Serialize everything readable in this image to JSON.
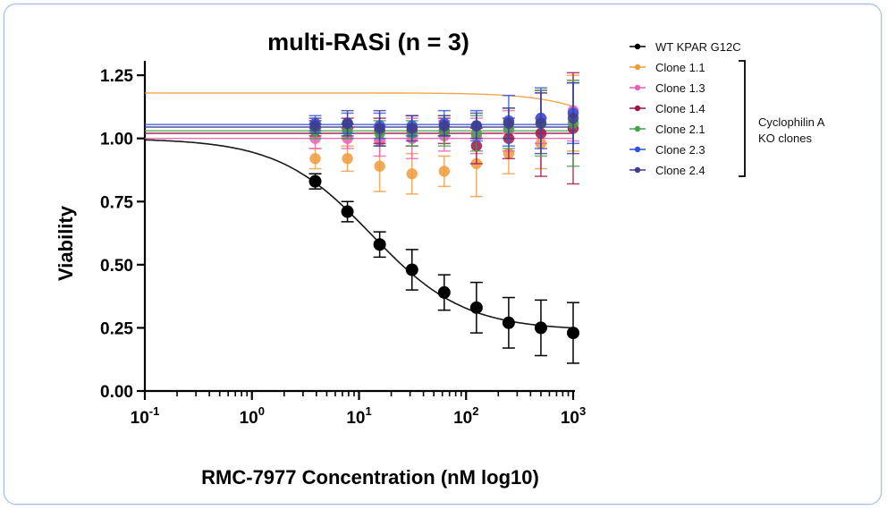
{
  "chart_data": {
    "type": "scatter",
    "title": "multi-RASi (n = 3)",
    "xlabel": "RMC-7977 Concentration (nM log10)",
    "ylabel": "Viability",
    "x_scale": "log",
    "xlim": [
      0.1,
      1000
    ],
    "ylim": [
      0,
      1.3
    ],
    "x_ticks": [
      {
        "base": "10",
        "exp": "-1"
      },
      {
        "base": "10",
        "exp": "0"
      },
      {
        "base": "10",
        "exp": "1"
      },
      {
        "base": "10",
        "exp": "2"
      },
      {
        "base": "10",
        "exp": "3"
      }
    ],
    "y_ticks": [
      "0.00",
      "0.25",
      "0.50",
      "0.75",
      "1.00",
      "1.25"
    ],
    "y_tick_values": [
      0,
      0.25,
      0.5,
      0.75,
      1.0,
      1.25
    ],
    "legend_position": "right",
    "bracket_label": [
      "Cyclophilin A",
      "KO clones"
    ],
    "x": [
      3.9,
      7.8,
      15.6,
      31.25,
      62.5,
      125,
      250,
      500,
      1000
    ],
    "series": [
      {
        "name": "WT KPAR G12C",
        "color": "#000000",
        "values": [
          0.83,
          0.71,
          0.58,
          0.48,
          0.39,
          0.33,
          0.27,
          0.25,
          0.23
        ],
        "err": [
          0.03,
          0.04,
          0.05,
          0.08,
          0.07,
          0.1,
          0.1,
          0.11,
          0.12
        ],
        "fit": {
          "top": 1.0,
          "bottom": 0.24,
          "ec50": 13,
          "hill": 1.0
        }
      },
      {
        "name": "Clone 1.1",
        "color": "#ef9b3c",
        "values": [
          0.92,
          0.92,
          0.89,
          0.86,
          0.87,
          0.9,
          0.94,
          0.98,
          1.1
        ],
        "err": [
          0.04,
          0.05,
          0.1,
          0.08,
          0.06,
          0.13,
          0.08,
          0.1,
          0.15
        ],
        "fit": {
          "top": 1.18,
          "bottom": 0.905,
          "ec50": 3000,
          "hill": 1.3
        }
      },
      {
        "name": "Clone 1.3",
        "color": "#e85fb4",
        "values": [
          1.0,
          1.0,
          0.99,
          1.0,
          1.01,
          1.01,
          1.03,
          1.08,
          1.11
        ],
        "err": [
          0.04,
          0.04,
          0.06,
          0.08,
          0.06,
          0.07,
          0.08,
          0.1,
          0.12
        ],
        "fit": {
          "flat": 1.0
        }
      },
      {
        "name": "Clone 1.4",
        "color": "#a0124a",
        "values": [
          1.04,
          1.04,
          1.03,
          1.03,
          1.03,
          0.97,
          1.0,
          1.02,
          1.04
        ],
        "err": [
          0.03,
          0.04,
          0.05,
          0.06,
          0.05,
          0.07,
          0.08,
          0.17,
          0.22
        ],
        "fit": {
          "flat": 1.02
        }
      },
      {
        "name": "Clone 2.1",
        "color": "#43a34a",
        "values": [
          1.03,
          1.03,
          1.02,
          1.02,
          1.03,
          1.02,
          1.04,
          1.06,
          1.06
        ],
        "err": [
          0.03,
          0.03,
          0.05,
          0.05,
          0.06,
          0.07,
          0.08,
          0.13,
          0.17
        ],
        "fit": {
          "flat": 1.03
        }
      },
      {
        "name": "Clone 2.3",
        "color": "#2f52e0",
        "values": [
          1.06,
          1.06,
          1.05,
          1.05,
          1.06,
          1.05,
          1.07,
          1.08,
          1.1
        ],
        "err": [
          0.03,
          0.04,
          0.05,
          0.04,
          0.05,
          0.06,
          0.1,
          0.12,
          0.12
        ],
        "fit": {
          "flat": 1.055
        }
      },
      {
        "name": "Clone 2.4",
        "color": "#3f3c8c",
        "values": [
          1.05,
          1.06,
          1.04,
          1.04,
          1.05,
          1.05,
          1.06,
          1.06,
          1.08
        ],
        "err": [
          0.03,
          0.05,
          0.07,
          0.05,
          0.04,
          0.05,
          0.06,
          0.12,
          0.14
        ],
        "fit": {
          "flat": 1.045
        }
      }
    ]
  }
}
